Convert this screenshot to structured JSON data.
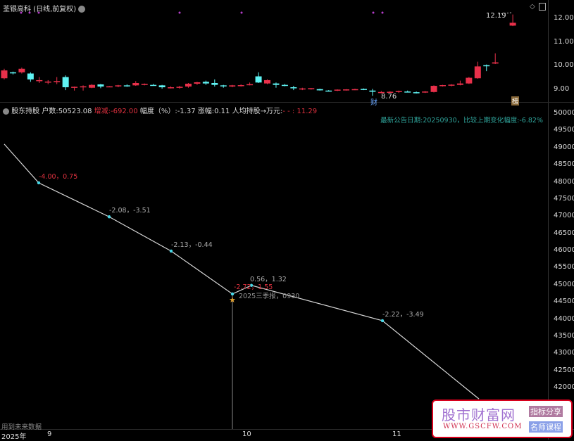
{
  "header": {
    "title": "荃银高科 (日线,前复权)",
    "max_label": "12.19",
    "min_label": "8.76",
    "cai_badge": "财",
    "bang_badge": "榜"
  },
  "indicator": {
    "name": "股东持股",
    "households_label": "户数:",
    "households": "50523.08",
    "change_label": "增减:",
    "change": "-692.00",
    "amplitude_label": "幅度（%）:",
    "amplitude": "-1.37",
    "rise_label": "涨幅:",
    "rise": "0.11",
    "per_capita_label": "人均持股→万元:",
    "per_capita": "- - : 11.29",
    "note": "最新公告日期:20250930，比较上期变化幅度:-6.82%",
    "future_note": "用到未来数据",
    "report_label": "2025三季报，0930"
  },
  "colors": {
    "up": "#e8304a",
    "down": "#5ff3f3",
    "line": "#d8d8d8",
    "point": "#46d7e6",
    "note": "#2fa39a",
    "marker": "#b33cc8"
  },
  "price_axis": {
    "ticks": [
      "12.00",
      "11.00",
      "10.00",
      "9.00"
    ]
  },
  "holder_axis": {
    "ticks": [
      "50000",
      "49500",
      "49000",
      "48500",
      "48000",
      "47500",
      "47000",
      "46500",
      "46000",
      "45500",
      "45000",
      "44500",
      "44000",
      "43500",
      "43000",
      "42500",
      "42000"
    ]
  },
  "x_axis": {
    "labels": [
      "2025年",
      "9",
      "10",
      "11"
    ]
  },
  "chart_data": [
    {
      "type": "candlestick",
      "ylim": [
        8.6,
        12.4
      ],
      "candles": [
        [
          9.5,
          9.9,
          9.45,
          9.83
        ],
        [
          9.75,
          9.78,
          9.66,
          9.72
        ],
        [
          9.75,
          9.95,
          9.7,
          9.9
        ],
        [
          9.7,
          9.75,
          9.35,
          9.45
        ],
        [
          9.4,
          9.55,
          9.3,
          9.42
        ],
        [
          9.35,
          9.42,
          9.25,
          9.36
        ],
        [
          9.36,
          9.55,
          9.25,
          9.38
        ],
        [
          9.55,
          9.62,
          9.0,
          9.12
        ],
        [
          9.1,
          9.15,
          8.98,
          9.14
        ],
        [
          9.14,
          9.2,
          8.98,
          9.16
        ],
        [
          9.1,
          9.25,
          9.08,
          9.22
        ],
        [
          9.24,
          9.26,
          9.08,
          9.15
        ],
        [
          9.15,
          9.17,
          9.13,
          9.16
        ],
        [
          9.16,
          9.22,
          9.12,
          9.2
        ],
        [
          9.2,
          9.24,
          9.14,
          9.18
        ],
        [
          9.2,
          9.38,
          9.18,
          9.3
        ],
        [
          9.25,
          9.28,
          9.2,
          9.26
        ],
        [
          9.22,
          9.26,
          9.18,
          9.2
        ],
        [
          9.2,
          9.22,
          9.06,
          9.12
        ],
        [
          9.1,
          9.16,
          9.07,
          9.12
        ],
        [
          9.12,
          9.18,
          9.06,
          9.14
        ],
        [
          9.15,
          9.3,
          9.1,
          9.27
        ],
        [
          9.27,
          9.35,
          9.22,
          9.33
        ],
        [
          9.35,
          9.4,
          9.22,
          9.28
        ],
        [
          9.3,
          9.45,
          9.15,
          9.22
        ],
        [
          9.2,
          9.22,
          9.1,
          9.18
        ],
        [
          9.15,
          9.22,
          9.12,
          9.2
        ],
        [
          9.2,
          9.24,
          9.15,
          9.21
        ],
        [
          9.22,
          9.32,
          9.2,
          9.25
        ],
        [
          9.58,
          9.75,
          9.3,
          9.32
        ],
        [
          9.28,
          9.45,
          9.25,
          9.42
        ],
        [
          9.28,
          9.32,
          9.1,
          9.22
        ],
        [
          9.22,
          9.26,
          9.16,
          9.18
        ],
        [
          9.12,
          9.18,
          9.0,
          9.08
        ],
        [
          9.05,
          9.1,
          9.0,
          9.07
        ],
        [
          9.05,
          9.09,
          9.02,
          9.08
        ],
        [
          9.04,
          9.06,
          8.98,
          8.99
        ],
        [
          8.98,
          9.0,
          8.94,
          8.96
        ],
        [
          8.98,
          9.03,
          8.96,
          9.02
        ],
        [
          9.0,
          9.04,
          8.98,
          9.03
        ],
        [
          9.02,
          9.06,
          9.0,
          9.04
        ],
        [
          9.05,
          9.07,
          9.0,
          9.02
        ],
        [
          8.98,
          9.05,
          8.76,
          8.93
        ],
        [
          8.9,
          8.96,
          8.86,
          8.92
        ],
        [
          8.9,
          8.95,
          8.88,
          8.93
        ],
        [
          8.93,
          8.98,
          8.88,
          8.96
        ],
        [
          8.94,
          8.98,
          8.9,
          8.92
        ],
        [
          8.91,
          8.94,
          8.86,
          8.89
        ],
        [
          8.92,
          8.96,
          8.88,
          8.94
        ],
        [
          8.92,
          9.2,
          8.9,
          9.18
        ],
        [
          9.18,
          9.22,
          9.15,
          9.21
        ],
        [
          9.2,
          9.25,
          9.16,
          9.23
        ],
        [
          9.22,
          9.4,
          9.2,
          9.28
        ],
        [
          9.28,
          9.55,
          9.26,
          9.52
        ],
        [
          9.5,
          10.2,
          9.48,
          10.0
        ],
        [
          10.05,
          10.08,
          9.8,
          10.02
        ],
        [
          10.12,
          10.55,
          10.1,
          10.17
        ],
        null,
        [
          11.72,
          12.19,
          11.7,
          11.84
        ]
      ]
    },
    {
      "type": "line",
      "ylim": [
        41800,
        50100
      ],
      "points": [
        {
          "v": 49120,
          "label": ""
        },
        {
          "v": 47990,
          "label": "-4.00，0.75",
          "hl": true
        },
        {
          "v": 47000,
          "label": "-2.08，-3.51"
        },
        {
          "v": 46000,
          "label": "-2.13，-0.44"
        },
        {
          "v": 44750,
          "label": "-2.72，1.55",
          "hl": true
        },
        {
          "v": 45000,
          "label": "0.56，1.32"
        },
        {
          "v": 43970,
          "label": "-2.22，-3.49"
        },
        {
          "v": 41690,
          "label": ""
        }
      ]
    }
  ],
  "logo": {
    "text": "股市财富网",
    "url": "WWW.GSCFW.COM",
    "tag1": "指标分享",
    "tag2": "名师课程"
  }
}
